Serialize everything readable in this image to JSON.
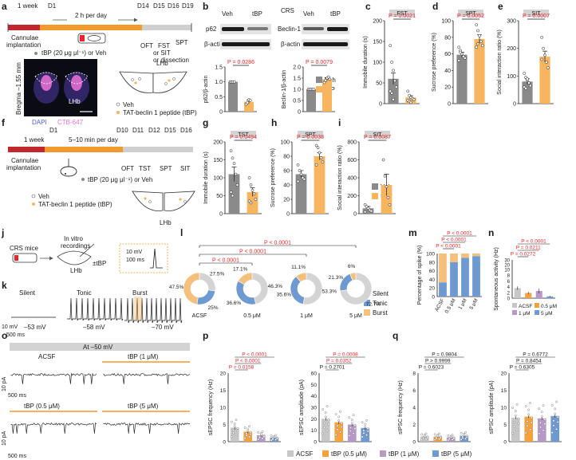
{
  "colors": {
    "veh": "#8a8a8a",
    "tbp": "#f7b560",
    "red": "#e8262a",
    "header": "#d3d3d3",
    "silent": "#d4d4d4",
    "tonic": "#6f9ad1",
    "burst": "#f5c07e",
    "acsf": "#c7c7c7",
    "c05": "#f4a23e",
    "c1": "#b799c8",
    "c5": "#6f9ad1",
    "dapi": "#5060d8",
    "ctb": "#e66fd1"
  },
  "panel_letters": [
    "a",
    "b",
    "c",
    "d",
    "e",
    "f",
    "g",
    "h",
    "i",
    "j",
    "k",
    "l",
    "m",
    "n",
    "o",
    "p",
    "q"
  ],
  "a": {
    "week": "1 week",
    "d1": "D1",
    "per_day": "2 h per day",
    "d14": "D14",
    "d15": "D15",
    "d16": "D16",
    "d19": "D19",
    "cannulae": "Cannulae",
    "implantation": "implantation",
    "ofT": "OFT",
    "fst": "FST",
    "spt": "SPT",
    "or_sit": "or SIT",
    "or_diss": "or dissection",
    "tbp_dose": "tBP (20 μg μl⁻¹) or Veh",
    "bregma": "Bregma –1.55 mm",
    "lhb": "LHb",
    "dapi": "DAPI",
    "ctb": "CTB-647",
    "lhb_diag": "LHb",
    "legend_veh": "Veh",
    "legend_tbp": "TAT-beclin 1 peptide (tBP)"
  },
  "b": {
    "crs": "CRS",
    "veh": "Veh",
    "tbp": "tBP",
    "p62": "p62",
    "bactin": "β-actin",
    "beclin": "Beclin-1",
    "p1": "P = 0.0286",
    "p2": "P = 0.0079",
    "y1": "p62/β-actin",
    "y2": "Beclin-1/β-actin",
    "legend_veh": "Veh",
    "legend_tbp": "tBP"
  },
  "f": {
    "week": "1 week",
    "d1": "D1",
    "per_day": "5–10 min per day",
    "d10": "D10",
    "d11": "D11",
    "d12": "D12",
    "d15": "D15",
    "d16": "D16",
    "cannulae": "Cannulae",
    "implantation": "implantation",
    "oft": "OFT",
    "tst": "TST",
    "spt": "SPT",
    "sit": "SIT",
    "tbp_dose": "tBP (20 μg μl⁻¹) or Veh",
    "legend_veh": "Veh",
    "legend_tbp": "TAT-beclin 1 peptide (tBP)",
    "lhb": "LHb"
  },
  "j": {
    "crs_mice": "CRS mice",
    "invitro": "In vitro",
    "recordings": "recordings",
    "lhb": "LHb",
    "tbp": "±tBP",
    "mv": "10 mV",
    "ms": "100 ms"
  },
  "k": {
    "silent": "Silent",
    "tonic": "Tonic",
    "burst": "Burst",
    "v1": "–53 mV",
    "v2": "–58 mV",
    "v3": "–70 mV",
    "mv": "10 mV",
    "ms": "500 ms"
  },
  "o": {
    "title": "At –50 mV",
    "acsf": "ACSF",
    "tbp1": "tBP (1 μM)",
    "tbp05": "tBP (0.5 μM)",
    "tbp5": "tBP (5 μM)",
    "ms": "500 ms",
    "pa": "10 pA"
  },
  "bottom_legend": {
    "acsf": "ACSF",
    "c05": "tBP (0.5 μM)",
    "c1": "tBP (1 μM)",
    "c5": "tBP (5 μM)"
  },
  "chart_data": [
    {
      "id": "b_p62",
      "type": "bar",
      "ylabel": "p62/β-actin",
      "ylim": [
        0,
        1.5
      ],
      "yticks": [
        "0",
        "0.5",
        "1.0",
        "1.5"
      ],
      "categories": [
        "Veh",
        "tBP"
      ],
      "values": [
        1.0,
        0.33
      ],
      "errors": [
        0.02,
        0.06
      ],
      "points": [
        [
          1.0,
          1.0,
          1.0,
          1.0
        ],
        [
          0.25,
          0.3,
          0.4,
          0.38
        ]
      ],
      "p": [
        "P = 0.0286"
      ]
    },
    {
      "id": "b_beclin",
      "type": "bar",
      "ylabel": "Beclin-1/β-actin",
      "ylim": [
        0,
        2.0
      ],
      "yticks": [
        "0",
        "0.5",
        "1.0",
        "1.5",
        "2.0"
      ],
      "categories": [
        "Veh",
        "tBP"
      ],
      "values": [
        1.0,
        1.45
      ],
      "errors": [
        0.02,
        0.07
      ],
      "points": [
        [
          1.0,
          1.0,
          1.0,
          1.0,
          1.0
        ],
        [
          1.3,
          1.4,
          1.5,
          1.55,
          1.45
        ]
      ],
      "p": [
        "P = 0.0079"
      ]
    },
    {
      "id": "c",
      "type": "bar",
      "title": "FST",
      "ylabel": "Immobile duration (s)",
      "ylim": [
        0,
        200
      ],
      "yticks": [
        "0",
        "50",
        "100",
        "150",
        "200"
      ],
      "categories": [
        "Veh",
        "tBP"
      ],
      "values": [
        60,
        15
      ],
      "errors": [
        14,
        4
      ],
      "points": [
        [
          140,
          100,
          80,
          55,
          40,
          30,
          25,
          10
        ],
        [
          30,
          20,
          15,
          12,
          10,
          8,
          5,
          3
        ]
      ],
      "p": [
        "P = 0.0021"
      ]
    },
    {
      "id": "d",
      "type": "bar",
      "title": "SPT",
      "ylabel": "Sucrose preference (%)",
      "ylim": [
        0,
        100
      ],
      "yticks": [
        "0",
        "20",
        "40",
        "60",
        "80",
        "100"
      ],
      "categories": [
        "Veh",
        "tBP"
      ],
      "values": [
        59,
        78
      ],
      "errors": [
        3,
        5
      ],
      "points": [
        [
          68,
          64,
          60,
          57,
          55,
          52,
          62
        ],
        [
          95,
          88,
          82,
          75,
          70,
          68,
          72
        ]
      ],
      "p": [
        "P = 0.0052"
      ]
    },
    {
      "id": "e",
      "type": "bar",
      "title": "SIT",
      "ylabel": "Social interaction ratio (%)",
      "ylim": [
        0,
        300
      ],
      "yticks": [
        "0",
        "100",
        "200",
        "300"
      ],
      "categories": [
        "Veh",
        "tBP"
      ],
      "values": [
        80,
        170
      ],
      "errors": [
        10,
        20
      ],
      "points": [
        [
          110,
          95,
          85,
          75,
          65,
          60,
          55,
          90
        ],
        [
          240,
          200,
          175,
          150,
          130,
          160
        ]
      ],
      "p": [
        "P = 0.0007"
      ]
    },
    {
      "id": "g",
      "type": "bar",
      "title": "TST",
      "ylabel": "Immobile duration (s)",
      "ylim": [
        0,
        200
      ],
      "yticks": [
        "0",
        "50",
        "100",
        "150",
        "200"
      ],
      "categories": [
        "Veh",
        "tBP"
      ],
      "values": [
        110,
        60
      ],
      "errors": [
        20,
        12
      ],
      "points": [
        [
          175,
          155,
          140,
          110,
          80,
          60,
          50
        ],
        [
          100,
          80,
          65,
          55,
          40,
          35,
          30
        ]
      ],
      "p": [
        "P = 0.0494"
      ]
    },
    {
      "id": "h",
      "type": "bar",
      "title": "SPT",
      "ylabel": "Sucrose preference (%)",
      "ylim": [
        0,
        100
      ],
      "yticks": [
        "0",
        "20",
        "40",
        "60",
        "80",
        "100"
      ],
      "categories": [
        "Veh",
        "tBP"
      ],
      "values": [
        55,
        80
      ],
      "errors": [
        5,
        5
      ],
      "points": [
        [
          68,
          60,
          55,
          50,
          48,
          45
        ],
        [
          95,
          92,
          85,
          78,
          72,
          68
        ]
      ],
      "p": [
        "P = 0.0038"
      ]
    },
    {
      "id": "i",
      "type": "bar",
      "title": "SIT",
      "ylabel": "Social interaction ratio (%)",
      "ylim": [
        0,
        800
      ],
      "yticks": [
        "0",
        "200",
        "400",
        "600",
        "800"
      ],
      "categories": [
        "Veh",
        "tBP"
      ],
      "values": [
        60,
        320
      ],
      "errors": [
        20,
        120
      ],
      "points": [
        [
          100,
          80,
          60,
          40,
          30,
          20
        ],
        [
          600,
          420,
          300,
          180,
          100
        ]
      ],
      "p": [
        "P = 0.0087"
      ]
    },
    {
      "id": "l",
      "type": "pie",
      "series_names": [
        "Silent",
        "Tonic",
        "Burst"
      ],
      "groups": [
        {
          "label": "ACSF",
          "values": [
            27.5,
            25,
            47.5
          ]
        },
        {
          "label": "0.5 μM",
          "values": [
            46.3,
            36.6,
            17.1
          ]
        },
        {
          "label": "1 μM",
          "values": [
            53.3,
            35.6,
            11.1
          ]
        },
        {
          "label": "5 μM",
          "values": [
            72.7,
            21.3,
            6
          ]
        }
      ],
      "brackets": [
        "P < 0.0001",
        "P < 0.0001",
        "P < 0.0001"
      ]
    },
    {
      "id": "m",
      "type": "bar",
      "stacked": true,
      "ylabel": "Percentage of spike (%)",
      "ylim": [
        0,
        100
      ],
      "yticks": [
        "0",
        "20",
        "40",
        "60",
        "80",
        "100"
      ],
      "categories": [
        "ACSF",
        "0.5 μM",
        "1 μM",
        "5 μM"
      ],
      "series": [
        {
          "name": "Tonic",
          "values": [
            33,
            80,
            90,
            94
          ]
        },
        {
          "name": "Burst",
          "values": [
            67,
            20,
            10,
            6
          ]
        }
      ],
      "brackets": [
        "P < 0.0001",
        "P < 0.0001",
        "P < 0.0001"
      ]
    },
    {
      "id": "n",
      "type": "bar",
      "ylabel": "Spontaneous activity (Hz)",
      "yticks": [
        "0",
        "2",
        "4",
        "6",
        "8",
        "10",
        "20",
        "30"
      ],
      "categories": [
        "ACSF",
        "0.5 μM",
        "1 μM",
        "5 μM"
      ],
      "values": [
        3.5,
        1.8,
        2.5,
        0.6
      ],
      "errors": [
        0.6,
        0.4,
        0.8,
        0.2
      ],
      "brackets": [
        "P = 0.0272",
        "P = 0.0211",
        "P < 0.0001"
      ],
      "legend": [
        "ACSF",
        "0.5 μM",
        "1 μM",
        "5 μM"
      ]
    },
    {
      "id": "p_freq",
      "type": "bar",
      "ylabel": "sEPSC frequency (Hz)",
      "ylim": [
        0,
        20
      ],
      "yticks": [
        "0",
        "5",
        "10",
        "15",
        "20"
      ],
      "categories": [
        "ACSF",
        "0.5 μM",
        "1 μM",
        "5 μM"
      ],
      "values": [
        4.1,
        2.9,
        1.9,
        1.2
      ],
      "errors": [
        0.6,
        0.5,
        0.4,
        0.3
      ],
      "brackets": [
        "P = 0.0158",
        "P < 0.0001",
        "P < 0.0001"
      ]
    },
    {
      "id": "p_amp",
      "type": "bar",
      "ylabel": "sEPSC amplitude (pA)",
      "ylim": [
        0,
        60
      ],
      "yticks": [
        "0",
        "10",
        "20",
        "30",
        "40",
        "50",
        "60"
      ],
      "categories": [
        "ACSF",
        "0.5 μM",
        "1 μM",
        "5 μM"
      ],
      "values": [
        20,
        17,
        15,
        12
      ],
      "errors": [
        1.5,
        1.5,
        1.5,
        1.5
      ],
      "brackets": [
        "P = 0.2701",
        "P = 0.0352",
        "P = 0.0008"
      ]
    },
    {
      "id": "q_freq",
      "type": "bar",
      "ylabel": "sIPSC frequency (Hz)",
      "ylim": [
        0,
        8
      ],
      "yticks": [
        "0",
        "2",
        "4",
        "6",
        "8"
      ],
      "categories": [
        "ACSF",
        "0.5 μM",
        "1 μM",
        "5 μM"
      ],
      "values": [
        0.6,
        0.6,
        0.5,
        0.7
      ],
      "errors": [
        0.1,
        0.1,
        0.1,
        0.15
      ],
      "brackets": [
        "P = 0.6023",
        "P > 0.9999",
        "P = 0.9804"
      ]
    },
    {
      "id": "q_amp",
      "type": "bar",
      "ylabel": "sIPSC amplitude (pA)",
      "ylim": [
        0,
        20
      ],
      "yticks": [
        "0",
        "5",
        "10",
        "15",
        "20"
      ],
      "categories": [
        "ACSF",
        "0.5 μM",
        "1 μM",
        "5 μM"
      ],
      "values": [
        7,
        7.3,
        6.8,
        7.5
      ],
      "errors": [
        0.4,
        0.4,
        0.4,
        0.5
      ],
      "brackets": [
        "P = 0.6305",
        "P = 0.8454",
        "P = 0.6772"
      ]
    }
  ]
}
